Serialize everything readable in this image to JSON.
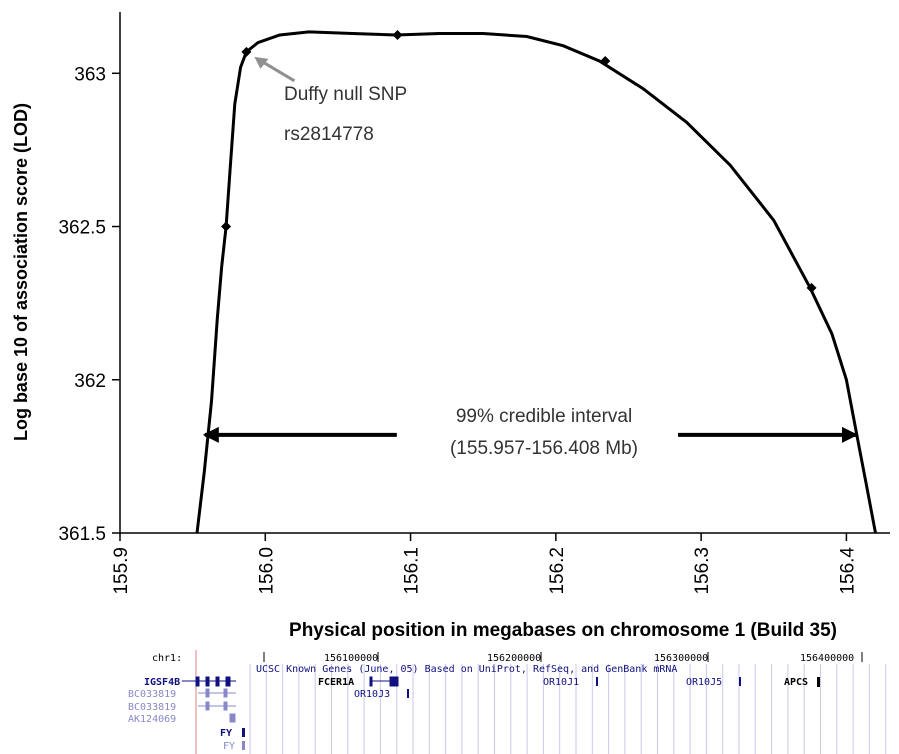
{
  "chart_data": {
    "type": "line",
    "xlabel": "Physical position in megabases on chromosome 1 (Build 35)",
    "ylabel": "Log base 10 of association score (LOD)",
    "xlim": [
      155.9,
      156.43
    ],
    "ylim": [
      361.5,
      363.2
    ],
    "x_ticks": [
      "155.9",
      "156.0",
      "156.1",
      "156.2",
      "156.3",
      "156.4"
    ],
    "y_ticks": [
      "361.5",
      "362",
      "362.5",
      "363"
    ],
    "curve": {
      "x": [
        155.953,
        155.958,
        155.963,
        155.967,
        155.97,
        155.973,
        155.976,
        155.979,
        155.983,
        155.987,
        155.995,
        156.01,
        156.03,
        156.06,
        156.09,
        156.12,
        156.15,
        156.18,
        156.205,
        156.23,
        156.26,
        156.29,
        156.32,
        156.35,
        156.375,
        156.39,
        156.4,
        156.408,
        156.414,
        156.42
      ],
      "y": [
        361.5,
        361.7,
        361.93,
        362.2,
        362.37,
        362.5,
        362.7,
        362.9,
        363.02,
        363.07,
        363.1,
        363.125,
        363.135,
        363.13,
        363.125,
        363.13,
        363.13,
        363.12,
        363.09,
        363.04,
        362.95,
        362.84,
        362.7,
        362.52,
        362.3,
        362.15,
        362.0,
        361.8,
        361.65,
        361.5
      ]
    },
    "points": [
      {
        "x": 155.973,
        "y": 362.5
      },
      {
        "x": 155.987,
        "y": 363.07
      },
      {
        "x": 156.091,
        "y": 363.125
      },
      {
        "x": 156.234,
        "y": 363.04
      },
      {
        "x": 156.376,
        "y": 362.3
      }
    ],
    "annotations": {
      "snp_line1": "Duffy null SNP",
      "snp_line2": "rs2814778",
      "snp_point": {
        "x": 155.987,
        "y": 363.07
      },
      "interval_line1": "99% credible interval",
      "interval_line2": "(155.957-156.408 Mb)",
      "interval": [
        155.957,
        156.408
      ],
      "interval_y": 361.82
    }
  },
  "gene_track": {
    "chrom_label": "chr1:",
    "positions": [
      "156100000",
      "156200000",
      "156300000",
      "156400000"
    ],
    "track_title": "UCSC Known Genes (June, 05) Based on UniProt, RefSeq, and GenBank mRNA",
    "genes": {
      "igsf4b": "IGSF4B",
      "bc1": "BC033819",
      "bc2": "BC033819",
      "ak": "AK124069",
      "fy1": "FY",
      "fy2": "FY",
      "fcer1a": "FCER1A",
      "or10j3": "OR10J3",
      "or10j1": "OR10J1",
      "or10j5": "OR10J5",
      "apcs": "APCS"
    },
    "colors": {
      "dark_gene": "#101080",
      "light_gene": "#8888c8",
      "grid": "#c8c8ee",
      "marker": "#e08080"
    }
  }
}
